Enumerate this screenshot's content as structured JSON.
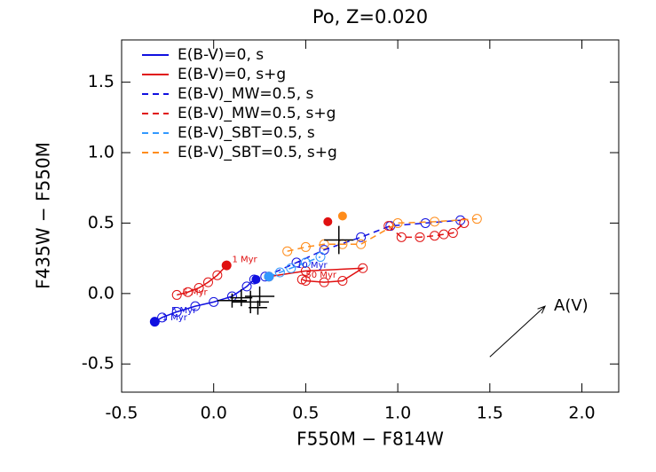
{
  "chart_data": {
    "type": "line",
    "title": "Po, Z=0.020",
    "x_label": "F550M − F814W",
    "y_label": "F435W − F550M",
    "xlim": [
      -0.5,
      2.2
    ],
    "ylim": [
      -0.7,
      1.8
    ],
    "xticks": [
      -0.5,
      {
        "value": 0,
        "label": "0.0"
      },
      0.5,
      {
        "value": 1,
        "label": "1.0"
      },
      1.5,
      {
        "value": 2,
        "label": "2.0"
      }
    ],
    "yticks": [
      -0.5,
      {
        "value": 0,
        "label": "0.0"
      },
      0.5,
      {
        "value": 1,
        "label": "1.0"
      },
      1.5
    ],
    "legend": "upper-left",
    "series": [
      {
        "name": "E(B-V)=0, s",
        "color": "#1010e0",
        "dashed": false,
        "x": [
          -0.32,
          -0.28,
          -0.2,
          -0.1,
          0.0,
          0.1,
          0.18,
          0.22
        ],
        "y": [
          -0.2,
          -0.17,
          -0.13,
          -0.09,
          -0.06,
          -0.02,
          0.05,
          0.1
        ]
      },
      {
        "name": "E(B-V)=0, s+g",
        "color": "#e01010",
        "dashed": false,
        "x": [
          0.07,
          0.02,
          -0.03,
          -0.08,
          -0.14,
          -0.2,
          null,
          0.3,
          0.5,
          0.81,
          0.7,
          0.6,
          0.5,
          0.48
        ],
        "y": [
          0.2,
          0.13,
          0.08,
          0.04,
          0.01,
          -0.01,
          null,
          0.12,
          0.16,
          0.18,
          0.09,
          0.08,
          0.09,
          0.1
        ]
      },
      {
        "name": "E(B-V)_MW=0.5, s",
        "color": "#1010e0",
        "dashed": true,
        "x": [
          0.28,
          0.45,
          0.6,
          0.8,
          0.96,
          1.15,
          1.34
        ],
        "y": [
          0.12,
          0.22,
          0.31,
          0.4,
          0.48,
          0.5,
          0.52
        ]
      },
      {
        "name": "E(B-V)_MW=0.5, s+g",
        "color": "#e01010",
        "dashed": true,
        "x": [
          0.95,
          1.02,
          1.12,
          1.2,
          1.25,
          1.3,
          1.36
        ],
        "y": [
          0.48,
          0.4,
          0.4,
          0.41,
          0.42,
          0.43,
          0.5
        ]
      },
      {
        "name": "E(B-V)_SBT=0.5, s",
        "color": "#3399ff",
        "dashed": true,
        "x": [
          0.3,
          0.36,
          0.42,
          0.5,
          0.58
        ],
        "y": [
          0.12,
          0.15,
          0.18,
          0.22,
          0.26
        ]
      },
      {
        "name": "E(B-V)_SBT=0.5, s+g",
        "color": "#ff8c1a",
        "dashed": true,
        "x": [
          0.4,
          0.5,
          0.6,
          0.7,
          0.8,
          1.0,
          1.2,
          1.43
        ],
        "y": [
          0.3,
          0.33,
          0.35,
          0.35,
          0.35,
          0.5,
          0.51,
          0.53
        ]
      }
    ],
    "start_points": {
      "x": [
        -0.32,
        0.23,
        0.07,
        0.62,
        0.7,
        0.3
      ],
      "y": [
        -0.2,
        0.1,
        0.2,
        0.51,
        0.55,
        0.12
      ],
      "colors": [
        "#1010e0",
        "#1010e0",
        "#e01010",
        "#e01010",
        "#ff8c1a",
        "#3399ff"
      ]
    },
    "observations": {
      "x": [
        0.68,
        0.1,
        0.15,
        0.2,
        0.25,
        0.24
      ],
      "y": [
        0.38,
        -0.05,
        -0.03,
        -0.06,
        -0.02,
        -0.1
      ],
      "xerr": [
        0.08,
        0.08,
        0.06,
        0.1,
        0.08,
        0.05
      ],
      "yerr": [
        0.1,
        0.05,
        0.06,
        0.08,
        0.07,
        0.05
      ]
    },
    "annotations": [
      {
        "text": "1 Myr",
        "x": 0.1,
        "y": 0.24,
        "color": "#e01010"
      },
      {
        "text": "5 Myr",
        "x": -0.17,
        "y": 0.01,
        "color": "#e01010"
      },
      {
        "text": "5 Myr",
        "x": -0.23,
        "y": -0.12,
        "color": "#1010e0"
      },
      {
        "text": "1 Myr",
        "x": -0.28,
        "y": -0.17,
        "color": "#1010e0"
      },
      {
        "text": "10 Myr",
        "x": 0.45,
        "y": 0.2,
        "color": "#1010e0"
      },
      {
        "text": "50 Myr",
        "x": 0.5,
        "y": 0.13,
        "color": "#e01010"
      }
    ],
    "arrow": {
      "label": "A(V)",
      "x": [
        1.5,
        1.8
      ],
      "y": [
        -0.45,
        -0.09
      ]
    }
  }
}
